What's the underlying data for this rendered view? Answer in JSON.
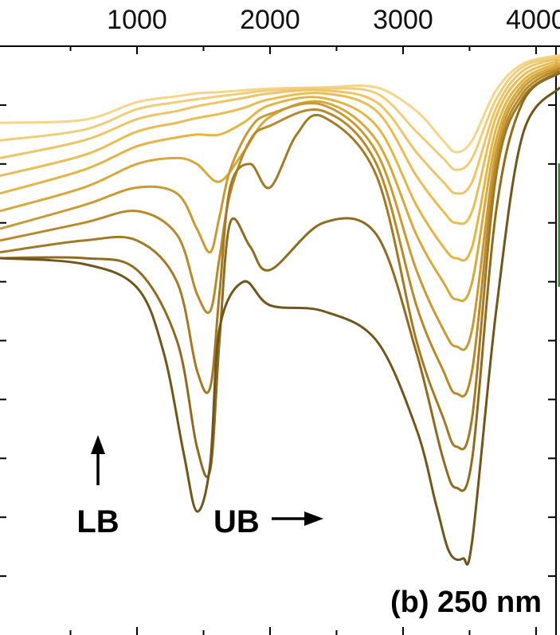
{
  "chart_data": {
    "type": "line",
    "title": "(b) 250 nm",
    "x_ticks": [
      "1000",
      "2000",
      "3000",
      "4000"
    ],
    "x_tick_values": [
      1000,
      2000,
      3000,
      4000
    ],
    "xlim": [
      -30,
      4180
    ],
    "ylim": [
      0,
      1
    ],
    "grid": false,
    "legend": "none",
    "annotations": [
      {
        "text": "LB",
        "x": 1390,
        "y": 0.075,
        "arrow": "up"
      },
      {
        "text": "UB",
        "x": 3000,
        "y": 0.075,
        "arrow": "right"
      }
    ],
    "series": [
      {
        "x": [
          -30,
          600,
          1000,
          1300,
          1450,
          1620,
          1800,
          2000,
          2400,
          2800,
          3100,
          3300,
          3400,
          3520,
          3700,
          3900,
          4180
        ],
        "y": [
          0.87,
          0.875,
          0.905,
          0.915,
          0.92,
          0.922,
          0.925,
          0.928,
          0.93,
          0.93,
          0.89,
          0.84,
          0.82,
          0.84,
          0.925,
          0.97,
          0.985
        ],
        "color": "#f3d58c"
      },
      {
        "x": [
          -30,
          600,
          1000,
          1300,
          1450,
          1620,
          1800,
          2000,
          2400,
          2800,
          3100,
          3300,
          3400,
          3520,
          3700,
          3900,
          4180
        ],
        "y": [
          0.84,
          0.858,
          0.893,
          0.905,
          0.91,
          0.915,
          0.92,
          0.925,
          0.928,
          0.92,
          0.855,
          0.81,
          0.79,
          0.81,
          0.91,
          0.965,
          0.982
        ],
        "color": "#f0cd7a"
      },
      {
        "x": [
          -30,
          600,
          1000,
          1300,
          1450,
          1620,
          1800,
          2000,
          2400,
          2800,
          3100,
          3300,
          3400,
          3520,
          3700,
          3900,
          4180
        ],
        "y": [
          0.81,
          0.84,
          0.876,
          0.89,
          0.898,
          0.905,
          0.912,
          0.92,
          0.925,
          0.905,
          0.82,
          0.77,
          0.75,
          0.77,
          0.895,
          0.958,
          0.98
        ],
        "color": "#edc568"
      },
      {
        "x": [
          -30,
          600,
          1000,
          1300,
          1450,
          1620,
          1800,
          2000,
          2400,
          2800,
          3100,
          3300,
          3400,
          3520,
          3700,
          3900,
          4180
        ],
        "y": [
          0.78,
          0.815,
          0.855,
          0.87,
          0.878,
          0.885,
          0.895,
          0.91,
          0.92,
          0.89,
          0.78,
          0.72,
          0.7,
          0.72,
          0.88,
          0.95,
          0.976
        ],
        "color": "#e8bd55"
      },
      {
        "x": [
          -30,
          600,
          1000,
          1300,
          1450,
          1620,
          1800,
          2000,
          2400,
          2800,
          3100,
          3300,
          3400,
          3520,
          3700,
          3900,
          4180
        ],
        "y": [
          0.75,
          0.79,
          0.83,
          0.845,
          0.85,
          0.85,
          0.87,
          0.9,
          0.912,
          0.865,
          0.73,
          0.66,
          0.64,
          0.66,
          0.86,
          0.942,
          0.972
        ],
        "color": "#e3b547"
      },
      {
        "x": [
          -30,
          600,
          1000,
          1300,
          1450,
          1620,
          1800,
          2000,
          2400,
          2800,
          3100,
          3300,
          3400,
          3520,
          3700,
          3900,
          4180
        ],
        "y": [
          0.72,
          0.76,
          0.8,
          0.81,
          0.8,
          0.77,
          0.82,
          0.88,
          0.905,
          0.84,
          0.68,
          0.6,
          0.57,
          0.6,
          0.84,
          0.935,
          0.968
        ],
        "color": "#d6a83e"
      },
      {
        "x": [
          -30,
          600,
          1000,
          1300,
          1450,
          1550,
          1620,
          1700,
          1850,
          2000,
          2400,
          2800,
          3100,
          3300,
          3400,
          3520,
          3700,
          3900,
          4180
        ],
        "y": [
          0.69,
          0.73,
          0.76,
          0.75,
          0.69,
          0.65,
          0.71,
          0.79,
          0.86,
          0.885,
          0.9,
          0.82,
          0.62,
          0.52,
          0.49,
          0.52,
          0.82,
          0.928,
          0.965
        ],
        "color": "#c89a35"
      },
      {
        "x": [
          -30,
          600,
          1000,
          1300,
          1450,
          1550,
          1620,
          1700,
          1850,
          2000,
          2400,
          2800,
          3100,
          3300,
          3400,
          3520,
          3700,
          3900,
          4180
        ],
        "y": [
          0.67,
          0.7,
          0.72,
          0.68,
          0.58,
          0.55,
          0.64,
          0.75,
          0.84,
          0.865,
          0.89,
          0.8,
          0.56,
          0.45,
          0.41,
          0.45,
          0.8,
          0.92,
          0.962
        ],
        "color": "#b68a2c"
      },
      {
        "x": [
          -30,
          600,
          1000,
          1300,
          1450,
          1550,
          1620,
          1700,
          1850,
          2000,
          2200,
          2400,
          2800,
          3100,
          3300,
          3400,
          3520,
          3700,
          3900,
          4180
        ],
        "y": [
          0.65,
          0.67,
          0.67,
          0.6,
          0.45,
          0.42,
          0.58,
          0.76,
          0.8,
          0.76,
          0.85,
          0.88,
          0.78,
          0.5,
          0.37,
          0.32,
          0.37,
          0.78,
          0.912,
          0.958
        ],
        "color": "#a27a26"
      },
      {
        "x": [
          -30,
          600,
          1000,
          1300,
          1450,
          1550,
          1620,
          1700,
          1850,
          2000,
          2400,
          2800,
          3100,
          3300,
          3400,
          3520,
          3700,
          3900,
          4180
        ],
        "y": [
          0.64,
          0.64,
          0.62,
          0.5,
          0.32,
          0.28,
          0.5,
          0.7,
          0.66,
          0.62,
          0.7,
          0.68,
          0.48,
          0.3,
          0.25,
          0.3,
          0.72,
          0.905,
          0.955
        ],
        "color": "#8e6b20"
      },
      {
        "x": [
          -30,
          600,
          1000,
          1200,
          1350,
          1450,
          1550,
          1620,
          1800,
          2000,
          2400,
          2800,
          3100,
          3250,
          3350,
          3450,
          3520,
          3700,
          3900,
          4180
        ],
        "y": [
          0.64,
          0.63,
          0.59,
          0.48,
          0.31,
          0.21,
          0.29,
          0.52,
          0.6,
          0.56,
          0.55,
          0.5,
          0.35,
          0.22,
          0.14,
          0.13,
          0.16,
          0.55,
          0.85,
          0.93
        ],
        "color": "#6f561c"
      }
    ]
  }
}
